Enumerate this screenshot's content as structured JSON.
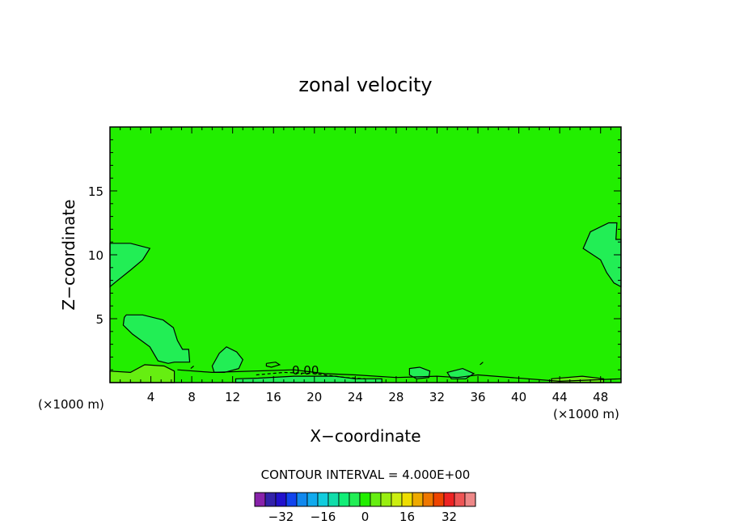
{
  "chart_data": {
    "type": "contour",
    "title": "zonal velocity",
    "xlabel": "X−coordinate",
    "ylabel": "Z−coordinate",
    "x_unit_left": "(×1000 m)",
    "x_unit_right": "(×1000 m)",
    "xlim": [
      0,
      50
    ],
    "ylim": [
      0,
      20
    ],
    "x_ticks": [
      4,
      8,
      12,
      16,
      20,
      24,
      28,
      32,
      36,
      40,
      44,
      48
    ],
    "x_tick_labels": [
      "4",
      "8",
      "12",
      "16",
      "20",
      "24",
      "28",
      "32",
      "36",
      "40",
      "44",
      "48"
    ],
    "y_ticks": [
      5,
      10,
      15
    ],
    "y_tick_labels": [
      "5",
      "10",
      "15"
    ],
    "background_level_color": "#22ee00",
    "contour_label": "0.00",
    "contour_interval_text": "CONTOUR INTERVAL = 4.000E+00",
    "regions": [
      {
        "name": "upper-left-lobe",
        "level_color": "#22ee55",
        "points": [
          [
            0,
            10.9
          ],
          [
            2,
            10.9
          ],
          [
            3.9,
            10.5
          ],
          [
            3.2,
            9.6
          ],
          [
            2,
            8.8
          ],
          [
            0.6,
            7.9
          ],
          [
            0,
            7.5
          ]
        ]
      },
      {
        "name": "upper-right-lobe",
        "level_color": "#22ee55",
        "points": [
          [
            50,
            11.2
          ],
          [
            49.5,
            11.2
          ],
          [
            49.6,
            12.5
          ],
          [
            48.8,
            12.5
          ],
          [
            47,
            11.8
          ],
          [
            46.3,
            10.5
          ],
          [
            48,
            9.6
          ],
          [
            48.6,
            8.6
          ],
          [
            49.3,
            7.8
          ],
          [
            50,
            7.5
          ]
        ]
      },
      {
        "name": "mid-left-lobe",
        "level_color": "#22ee55",
        "points": [
          [
            1.6,
            5.3
          ],
          [
            3.2,
            5.3
          ],
          [
            5.2,
            4.9
          ],
          [
            6.2,
            4.3
          ],
          [
            6.6,
            3.3
          ],
          [
            7.1,
            2.6
          ],
          [
            7.7,
            2.6
          ],
          [
            7.8,
            1.6
          ],
          [
            6.3,
            1.6
          ],
          [
            5.7,
            1.5
          ],
          [
            4.7,
            1.7
          ],
          [
            3.9,
            2.8
          ],
          [
            2.2,
            3.8
          ],
          [
            1.3,
            4.5
          ],
          [
            1.4,
            5.1
          ]
        ]
      },
      {
        "name": "lobe-10km",
        "level_color": "#22ee55",
        "points": [
          [
            10,
            1.3
          ],
          [
            10.7,
            2.3
          ],
          [
            11.4,
            2.8
          ],
          [
            12.4,
            2.4
          ],
          [
            13,
            1.8
          ],
          [
            12.6,
            1.1
          ],
          [
            11.2,
            0.8
          ],
          [
            10.2,
            0.8
          ]
        ]
      },
      {
        "name": "bottom-left-band",
        "level_color": "#66ee11",
        "points": [
          [
            0,
            0.9
          ],
          [
            2,
            0.8
          ],
          [
            3.4,
            1.4
          ],
          [
            5.3,
            1.3
          ],
          [
            6.3,
            0.9
          ],
          [
            6.3,
            0
          ],
          [
            0,
            0
          ]
        ]
      },
      {
        "name": "bottom-center-strip",
        "level_color": "#22ee55",
        "points": [
          [
            12.3,
            0.3
          ],
          [
            14.5,
            0.35
          ],
          [
            18,
            0.5
          ],
          [
            22,
            0.5
          ],
          [
            24,
            0.3
          ],
          [
            26.6,
            0.3
          ],
          [
            26.6,
            0
          ],
          [
            12.3,
            0
          ]
        ]
      },
      {
        "name": "lobe-30km",
        "level_color": "#22ee55",
        "points": [
          [
            29.3,
            1.1
          ],
          [
            30.3,
            1.2
          ],
          [
            31.3,
            0.9
          ],
          [
            31.2,
            0.4
          ],
          [
            30,
            0.3
          ],
          [
            29.3,
            0.6
          ]
        ]
      },
      {
        "name": "lobe-33km",
        "level_color": "#22ee55",
        "points": [
          [
            33,
            0.8
          ],
          [
            34.5,
            1.1
          ],
          [
            35.6,
            0.7
          ],
          [
            34.8,
            0.3
          ],
          [
            33.4,
            0.3
          ]
        ]
      },
      {
        "name": "bottom-right-strip",
        "level_color": "#66ee11",
        "points": [
          [
            43.2,
            0.3
          ],
          [
            46.2,
            0.5
          ],
          [
            48.3,
            0.3
          ],
          [
            48.3,
            0
          ],
          [
            43.2,
            0
          ]
        ]
      }
    ],
    "contour_lines": [
      {
        "name": "zero-contour",
        "dashed": false,
        "points": [
          [
            6.6,
            1
          ],
          [
            10,
            0.8
          ],
          [
            18,
            1
          ],
          [
            21,
            0.7
          ],
          [
            24,
            0.6
          ],
          [
            28,
            0.4
          ],
          [
            32,
            0.5
          ],
          [
            34,
            0.4
          ],
          [
            36,
            0.6
          ],
          [
            44,
            0.1
          ],
          [
            50,
            0.3
          ]
        ]
      },
      {
        "name": "negative-contour",
        "dashed": true,
        "points": [
          [
            14.3,
            0.6
          ],
          [
            17,
            0.8
          ],
          [
            20,
            0.7
          ],
          [
            23,
            0.4
          ],
          [
            25,
            0.3
          ]
        ]
      },
      {
        "name": "small-loop-16km",
        "dashed": false,
        "points": [
          [
            15.3,
            1.5
          ],
          [
            16.2,
            1.6
          ],
          [
            16.6,
            1.4
          ],
          [
            15.8,
            1.2
          ],
          [
            15.3,
            1.3
          ],
          [
            15.3,
            1.5
          ]
        ]
      },
      {
        "name": "small-mark-8km",
        "dashed": false,
        "points": [
          [
            7.9,
            1.1
          ],
          [
            8.2,
            1.3
          ]
        ]
      },
      {
        "name": "small-mark-36km",
        "dashed": false,
        "points": [
          [
            36.2,
            1.4
          ],
          [
            36.5,
            1.6
          ]
        ]
      }
    ],
    "colorbar": {
      "colors": [
        "#8822aa",
        "#3322aa",
        "#2211cc",
        "#1144ee",
        "#1188ee",
        "#11aaee",
        "#11ccdd",
        "#11ddaa",
        "#11ee77",
        "#22ee55",
        "#22ee00",
        "#66ee11",
        "#99ee11",
        "#ccee11",
        "#eedd00",
        "#eeaa00",
        "#ee7700",
        "#ee4400",
        "#ee2222",
        "#ee5555",
        "#ee8888"
      ],
      "tick_labels": [
        "−32",
        "−16",
        "0",
        "16",
        "32"
      ]
    }
  }
}
